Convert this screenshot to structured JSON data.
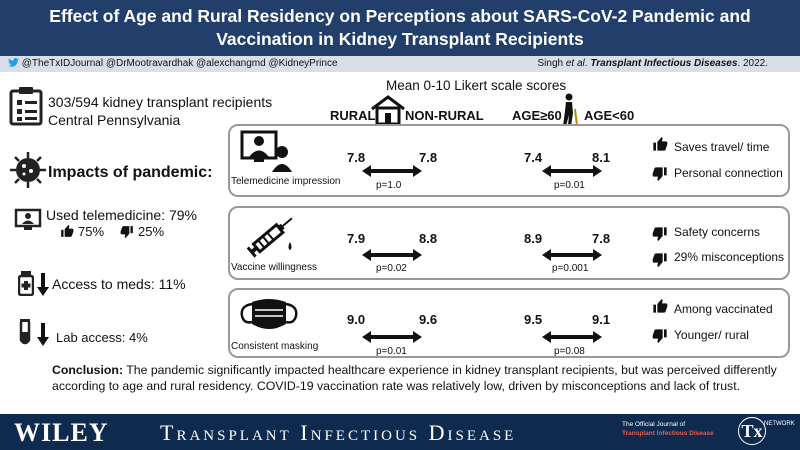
{
  "header": {
    "title": "Effect of Age and Rural Residency on Perceptions about SARS-CoV-2 Pandemic and Vaccination in Kidney Transplant Recipients"
  },
  "social": {
    "handles": "@TheTxIDJournal @DrMootravardhak @alexchangmd @KidneyPrince",
    "citation_authors": "Singh ",
    "citation_etal": "et al",
    "citation_period": ". ",
    "citation_journal": "Transplant Infectious Diseases",
    "citation_year": ". 2022."
  },
  "cohort": {
    "line1": "303/594 kidney transplant recipients",
    "line2": "Central Pennsylvania"
  },
  "likert_title": "Mean 0-10 Likert scale scores",
  "column_headers": {
    "rural": "RURAL",
    "non_rural": "NON-RURAL",
    "age_ge60": "AGE≥60",
    "age_lt60": "AGE<60"
  },
  "left": {
    "impacts_title": "Impacts of pandemic:",
    "telemedicine": "Used telemedicine: 79%",
    "thumbs_up_pct": "75%",
    "thumbs_down_pct": "25%",
    "meds": "Access to meds: 11%",
    "lab": "Lab access: 4%"
  },
  "panels": [
    {
      "label": "Telemedicine impression",
      "rural": "7.8",
      "non_rural": "7.8",
      "p_residency": "p=1.0",
      "age_ge60": "7.4",
      "age_lt60": "8.1",
      "p_age": "p=0.01",
      "side_up": "Saves travel/ time",
      "side_down": "Personal connection"
    },
    {
      "label": "Vaccine willingness",
      "rural": "7.9",
      "non_rural": "8.8",
      "p_residency": "p=0.02",
      "age_ge60": "8.9",
      "age_lt60": "7.8",
      "p_age": "p=0.001",
      "side_up": "Safety concerns",
      "side_down": "29% misconceptions"
    },
    {
      "label": "Consistent masking",
      "rural": "9.0",
      "non_rural": "9.6",
      "p_residency": "p=0.01",
      "age_ge60": "9.5",
      "age_lt60": "9.1",
      "p_age": "p=0.08",
      "side_up": "Among vaccinated",
      "side_down": "Younger/ rural"
    }
  ],
  "conclusion": {
    "label": "Conclusion:",
    "text": " The pandemic significantly impacted healthcare experience in kidney transplant recipients, but was perceived differently according to age and rural residency. COVID-19 vaccination rate was relatively low, driven by misconceptions and lack of trust."
  },
  "footer": {
    "publisher": "WILEY",
    "journal": "Transplant Infectious Disease",
    "official_line1": "The Official Journal of",
    "official_line2": "Transplant Infectious Disease",
    "tx_logo": "Tx",
    "tx_network": "NETWORK"
  },
  "colors": {
    "header_bg": "#223f6b",
    "footer_bg": "#0e2b4f",
    "social_bg": "#d9dfe8"
  }
}
